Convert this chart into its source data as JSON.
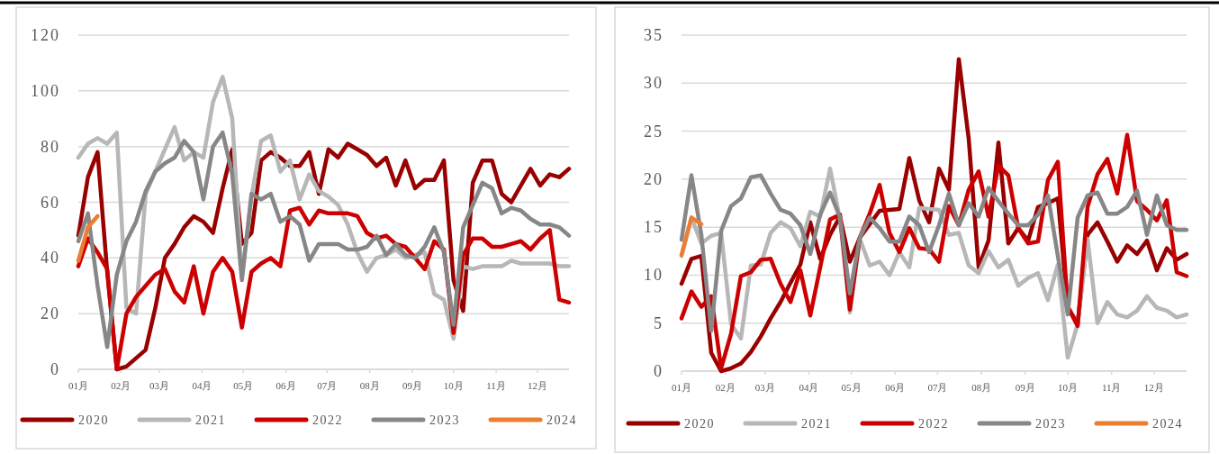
{
  "chart_data": [
    {
      "type": "line",
      "x": [
        "--01-01",
        "--01-08",
        "--01-15",
        "--01-22",
        "--01-29",
        "--02-05",
        "--02-12",
        "--02-19",
        "--02-26",
        "--03-05",
        "--03-12",
        "--03-19",
        "--03-26",
        "--04-02",
        "--04-09",
        "--04-16",
        "--04-23",
        "--04-30",
        "--05-07",
        "--05-14",
        "--05-21",
        "--05-28",
        "--06-04",
        "--06-11",
        "--06-18",
        "--06-25",
        "--07-02",
        "--07-09",
        "--07-16",
        "--07-23",
        "--07-30",
        "--08-06",
        "--08-13",
        "--08-20",
        "--08-27",
        "--09-03",
        "--09-10",
        "--09-17",
        "--09-24",
        "--10-01",
        "--10-08",
        "--10-15",
        "--10-22",
        "--10-29",
        "--11-05",
        "--11-12",
        "--11-19",
        "--11-26",
        "--12-03",
        "--12-10",
        "--12-17",
        "--12-24"
      ],
      "xlim": [
        "--01-01",
        "--12-24"
      ],
      "xticks": [
        {
          "value": "--01-01",
          "label": "01月"
        },
        {
          "value": "--02-01",
          "label": "02月"
        },
        {
          "value": "--03-01",
          "label": "03月"
        },
        {
          "value": "--04-01",
          "label": "04月"
        },
        {
          "value": "--05-01",
          "label": "05月"
        },
        {
          "value": "--06-01",
          "label": "06月"
        },
        {
          "value": "--07-01",
          "label": "07月"
        },
        {
          "value": "--08-01",
          "label": "08月"
        },
        {
          "value": "--09-01",
          "label": "09月"
        },
        {
          "value": "--10-01",
          "label": "10月"
        },
        {
          "value": "--11-01",
          "label": "11月"
        },
        {
          "value": "--12-01",
          "label": "12月"
        }
      ],
      "ylim": [
        0,
        120
      ],
      "yticks": [
        0,
        20,
        40,
        60,
        80,
        100,
        120
      ],
      "grid": "y",
      "legend": "bottom",
      "line_style": "solid",
      "marker": "none",
      "series": [
        {
          "name": "2020",
          "color": "#990000",
          "values": [
            48,
            69,
            78,
            35,
            0,
            1,
            4,
            7,
            22,
            40,
            45,
            51,
            55,
            53,
            49,
            65,
            79,
            45,
            49,
            75,
            78,
            76,
            73,
            73,
            78,
            63,
            79,
            76,
            81,
            79,
            77,
            73,
            76,
            66,
            75,
            65,
            68,
            68,
            75,
            32,
            21,
            67,
            75,
            75,
            63,
            60,
            66,
            72,
            66,
            70,
            69,
            72
          ]
        },
        {
          "name": "2021",
          "color": "#b7b7b7",
          "values": [
            76,
            81,
            83,
            81,
            85,
            22,
            20,
            63,
            71,
            79,
            87,
            75,
            78,
            76,
            96,
            105,
            90,
            33,
            62,
            82,
            84,
            71,
            75,
            61,
            70,
            64,
            62,
            59,
            52,
            42,
            35,
            40,
            41,
            43,
            40,
            41,
            42,
            27,
            25,
            11,
            37,
            36,
            37,
            37,
            37,
            39,
            38,
            38,
            38,
            38,
            37,
            37
          ]
        },
        {
          "name": "2022",
          "color": "#cc0000",
          "values": [
            37,
            47,
            42,
            36,
            0,
            20,
            26,
            30,
            34,
            36,
            28,
            24,
            37,
            20,
            35,
            40,
            35,
            15,
            35,
            38,
            40,
            37,
            57,
            58,
            52,
            57,
            56,
            56,
            56,
            55,
            49,
            47,
            48,
            45,
            44,
            40,
            36,
            46,
            43,
            13,
            41,
            47,
            47,
            44,
            44,
            45,
            46,
            43,
            47,
            50,
            25,
            24
          ]
        },
        {
          "name": "2023",
          "color": "#878787",
          "values": [
            46,
            56,
            30,
            8,
            34,
            46,
            53,
            64,
            71,
            74,
            76,
            82,
            78,
            61,
            80,
            85,
            70,
            32,
            63,
            61,
            63,
            53,
            55,
            52,
            39,
            45,
            45,
            45,
            43,
            43,
            44,
            48,
            41,
            45,
            41,
            40,
            44,
            51,
            42,
            16,
            51,
            59,
            67,
            65,
            56,
            58,
            57,
            54,
            52,
            52,
            51,
            48
          ]
        },
        {
          "name": "2024",
          "color": "#ed7d31",
          "x": [
            "--01-01",
            "--01-08",
            "--01-15"
          ],
          "values": [
            39,
            51,
            55
          ]
        }
      ]
    },
    {
      "type": "line",
      "x": [
        "--01-01",
        "--01-08",
        "--01-15",
        "--01-22",
        "--01-29",
        "--02-05",
        "--02-12",
        "--02-19",
        "--02-26",
        "--03-05",
        "--03-12",
        "--03-19",
        "--03-26",
        "--04-02",
        "--04-09",
        "--04-16",
        "--04-23",
        "--04-30",
        "--05-07",
        "--05-14",
        "--05-21",
        "--05-28",
        "--06-04",
        "--06-11",
        "--06-18",
        "--06-25",
        "--07-02",
        "--07-09",
        "--07-16",
        "--07-23",
        "--07-30",
        "--08-06",
        "--08-13",
        "--08-20",
        "--08-27",
        "--09-03",
        "--09-10",
        "--09-17",
        "--09-24",
        "--10-01",
        "--10-08",
        "--10-15",
        "--10-22",
        "--10-29",
        "--11-05",
        "--11-12",
        "--11-19",
        "--11-26",
        "--12-03",
        "--12-10",
        "--12-17",
        "--12-24"
      ],
      "xlim": [
        "--01-01",
        "--12-24"
      ],
      "xticks": [
        {
          "value": "--01-01",
          "label": "01月"
        },
        {
          "value": "--02-01",
          "label": "02月"
        },
        {
          "value": "--03-01",
          "label": "03月"
        },
        {
          "value": "--04-01",
          "label": "04月"
        },
        {
          "value": "--05-01",
          "label": "05月"
        },
        {
          "value": "--06-01",
          "label": "06月"
        },
        {
          "value": "--07-01",
          "label": "07月"
        },
        {
          "value": "--08-01",
          "label": "08月"
        },
        {
          "value": "--09-01",
          "label": "09月"
        },
        {
          "value": "--10-01",
          "label": "10月"
        },
        {
          "value": "--11-01",
          "label": "11月"
        },
        {
          "value": "--12-01",
          "label": "12月"
        }
      ],
      "ylim": [
        0,
        35
      ],
      "yticks": [
        0,
        5,
        10,
        15,
        20,
        25,
        30,
        35
      ],
      "grid": "y",
      "legend": "bottom",
      "line_style": "solid",
      "marker": "none",
      "series": [
        {
          "name": "2020",
          "color": "#990000",
          "values": [
            9.1,
            11.7,
            12,
            1.9,
            0,
            0.3,
            0.8,
            2,
            3.6,
            5.5,
            7.2,
            9.2,
            11.1,
            15.5,
            11.7,
            14.2,
            16.1,
            11.4,
            13.9,
            15.3,
            16.7,
            16.8,
            16.9,
            22.2,
            17.8,
            15.5,
            21.1,
            18.9,
            32.5,
            24.2,
            10.8,
            13.6,
            23.8,
            13.3,
            14.9,
            13.6,
            17.1,
            17.5,
            18,
            6.7,
            4.9,
            14.2,
            15.5,
            13.5,
            11.4,
            13.1,
            12.2,
            13.6,
            10.5,
            12.8,
            11.6,
            12.2
          ]
        },
        {
          "name": "2021",
          "color": "#b7b7b7",
          "values": [
            12,
            16,
            13.3,
            14.1,
            14.4,
            4.9,
            3.4,
            11,
            11.1,
            14.4,
            15.5,
            14.9,
            13,
            16.6,
            16.1,
            21.1,
            15.8,
            6.1,
            13.8,
            11,
            11.4,
            10,
            12.4,
            10.8,
            17,
            16.9,
            16.8,
            14.2,
            14.4,
            11,
            10.2,
            12.5,
            10.8,
            11.6,
            8.9,
            9.7,
            10.2,
            7.4,
            11.1,
            1.4,
            4.9,
            13.8,
            5,
            7.2,
            5.9,
            5.6,
            6.3,
            7.8,
            6.6,
            6.3,
            5.6,
            5.9
          ]
        },
        {
          "name": "2022",
          "color": "#cc0000",
          "values": [
            5.5,
            8.3,
            6.7,
            7.8,
            0.3,
            3.9,
            9.9,
            10.3,
            11.6,
            11.7,
            9.1,
            7.2,
            10.5,
            5.8,
            10.8,
            15.8,
            16.3,
            6.4,
            13.9,
            16.4,
            19.4,
            14.4,
            12.4,
            14.9,
            12.8,
            12.7,
            11.4,
            17.2,
            15.2,
            18.9,
            20.8,
            16.1,
            21.4,
            20.4,
            14.9,
            13.3,
            13.5,
            19.9,
            21.8,
            6.7,
            4.7,
            17.1,
            20.5,
            22.1,
            18.5,
            24.6,
            17.7,
            16.8,
            15.7,
            17.8,
            10.3,
            9.9
          ]
        },
        {
          "name": "2023",
          "color": "#878787",
          "values": [
            13.7,
            20.4,
            14.2,
            4.2,
            14.6,
            17.2,
            18,
            20.2,
            20.4,
            18.5,
            16.8,
            16.4,
            15.2,
            12.2,
            16.3,
            18.6,
            16,
            8.1,
            13.9,
            16,
            14.9,
            13.5,
            13.5,
            16.1,
            15.2,
            12.4,
            15.2,
            18.5,
            15.2,
            17.5,
            16.1,
            19.1,
            17.7,
            16.4,
            15.2,
            15.2,
            16.3,
            18.3,
            12,
            5.9,
            16,
            18.3,
            18.6,
            16.4,
            16.4,
            17.1,
            18.8,
            14.2,
            18.3,
            15.2,
            14.7,
            14.7
          ]
        },
        {
          "name": "2024",
          "color": "#ed7d31",
          "x": [
            "--01-01",
            "--01-08",
            "--01-15"
          ],
          "values": [
            12.1,
            16,
            15.3
          ]
        }
      ]
    }
  ]
}
